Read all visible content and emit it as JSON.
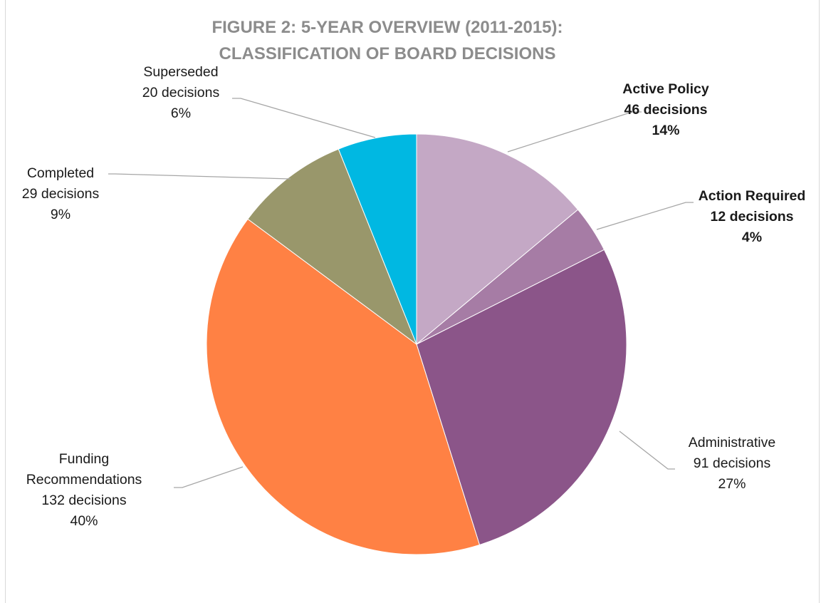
{
  "chart_data": {
    "type": "pie",
    "title_lines": [
      "FIGURE 2: 5-YEAR OVERVIEW (2011-2015):",
      "CLASSIFICATION OF BOARD DECISIONS"
    ],
    "slices": [
      {
        "name": "Active Policy",
        "value": 46,
        "value_label": "46 decisions",
        "percent_label": "14%",
        "color": "#c4a8c5",
        "bold": true
      },
      {
        "name": "Action Required",
        "value": 12,
        "value_label": "12 decisions",
        "percent_label": "4%",
        "color": "#a67ca5",
        "bold": true
      },
      {
        "name": "Administrative",
        "value": 91,
        "value_label": "91 decisions",
        "percent_label": "27%",
        "color": "#8b5589",
        "bold": false
      },
      {
        "name": "Funding Recommendations",
        "name_lines": [
          "Funding",
          "Recommendations"
        ],
        "value": 132,
        "value_label": "132 decisions",
        "percent_label": "40%",
        "color": "#ff8144",
        "bold": false
      },
      {
        "name": "Completed",
        "value": 29,
        "value_label": "29 decisions",
        "percent_label": "9%",
        "color": "#99976b",
        "bold": false
      },
      {
        "name": "Superseded",
        "value": 20,
        "value_label": "20 decisions",
        "percent_label": "6%",
        "color": "#00b8e2",
        "bold": false
      }
    ]
  }
}
